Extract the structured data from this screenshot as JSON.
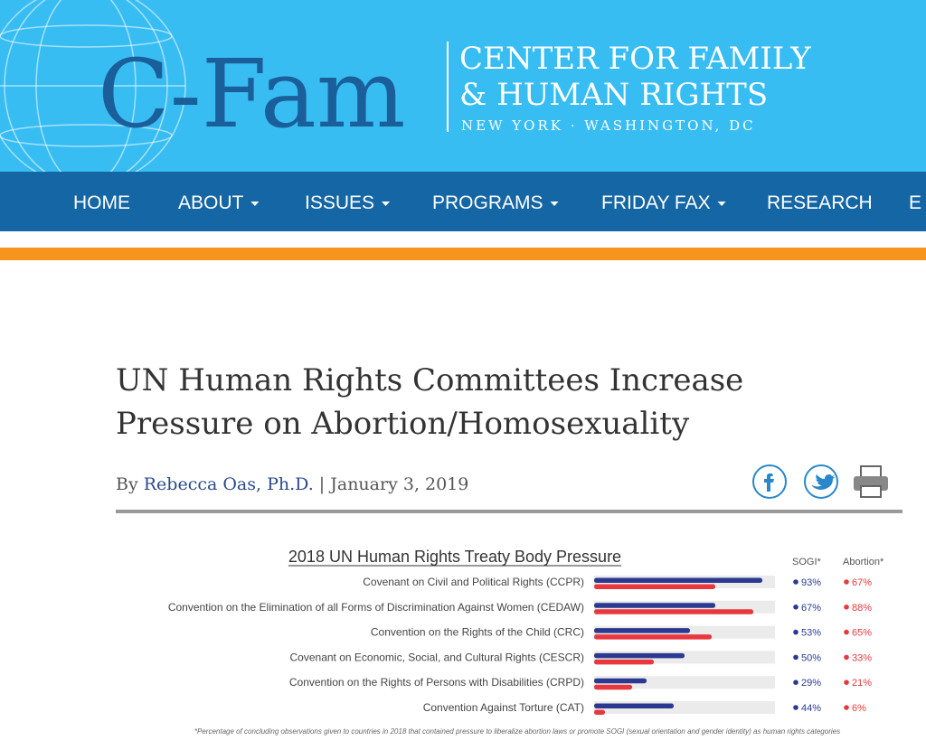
{
  "header": {
    "logo": "C-Fam",
    "name_lines": [
      "CENTER FOR FAMILY",
      "& HUMAN RIGHTS"
    ],
    "locations": "NEW YORK · WASHINGTON, DC"
  },
  "nav": [
    "HOME",
    "ABOUT",
    "ISSUES",
    "PROGRAMS",
    "FRIDAY FAX",
    "RESEARCH",
    "E"
  ],
  "article": {
    "title_lines": [
      "UN Human Rights Committees Increase",
      "Pressure on Abortion/Homosexuality"
    ],
    "byline_prefix": "By",
    "author": "Rebecca Oas, Ph.D.",
    "separator": "|",
    "date": "January 3, 2019"
  },
  "chart_data": {
    "type": "bar",
    "orientation": "horizontal",
    "title": "2018 UN Human Rights Treaty Body Pressure",
    "categories": [
      "Covenant on Civil and Political Rights (CCPR)",
      "Convention on the Elimination of all Forms of Discrimination Against Women (CEDAW)",
      "Convention on the Rights of the Child (CRC)",
      "Covenant on Economic, Social, and Cultural Rights (CESCR)",
      "Convention on the Rights of Persons with Disabilities (CRPD)",
      "Convention Against Torture (CAT)"
    ],
    "series": [
      {
        "name": "SOGI*",
        "color": "#2b3990",
        "values": [
          93,
          67,
          53,
          50,
          29,
          44
        ],
        "value_labels": [
          "93%",
          "67%",
          "53%",
          "50%",
          "29%",
          "44%"
        ]
      },
      {
        "name": "Abortion*",
        "color": "#e8383d",
        "values": [
          67,
          88,
          65,
          33,
          21,
          6
        ],
        "value_labels": [
          "67%",
          "88%",
          "65%",
          "33%",
          "21%",
          "6%"
        ]
      }
    ],
    "xlim": [
      0,
      100
    ],
    "note": "*Percentage of concluding observations given to countries in 2018 that contained pressure to liberalize abortion laws or promote SOGI (sexual orientation and gender identity) as human rights categories"
  }
}
